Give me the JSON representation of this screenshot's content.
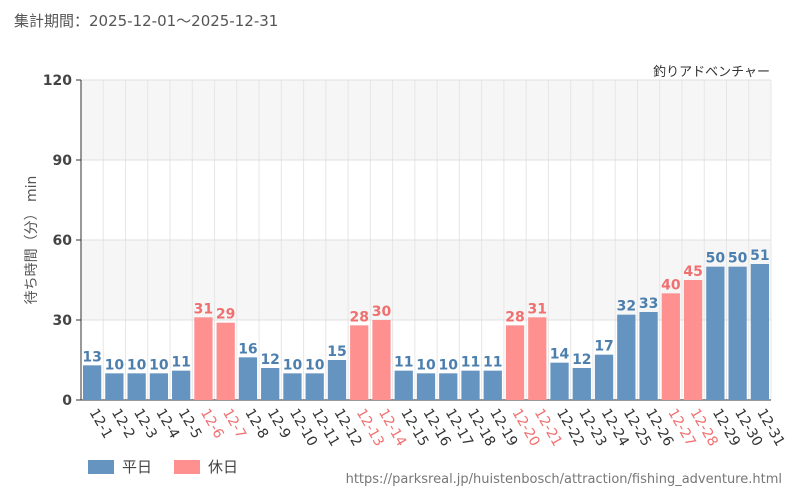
{
  "period": "集計期間：2025-12-01～2025-12-31",
  "colors": {
    "weekday": "#6594c1",
    "holiday": "#ff9090",
    "holiday_text": "#f07070",
    "weekday_text": "#4d7fae"
  },
  "legend": {
    "weekday": "平日",
    "holiday": "休日"
  },
  "source": "https://parksreal.jp/huistenbosch/attraction/fishing_adventure.html",
  "chart_data": {
    "type": "bar",
    "title": "釣りアドベンチャー",
    "xlabel": "",
    "ylabel": "待ち時間（分） min",
    "ylim": [
      0,
      120
    ],
    "yticks": [
      0,
      30,
      60,
      90,
      120
    ],
    "categories": [
      "12-1",
      "12-2",
      "12-3",
      "12-4",
      "12-5",
      "12-6",
      "12-7",
      "12-8",
      "12-9",
      "12-10",
      "12-11",
      "12-12",
      "12-13",
      "12-14",
      "12-15",
      "12-16",
      "12-17",
      "12-18",
      "12-19",
      "12-20",
      "12-21",
      "12-22",
      "12-23",
      "12-24",
      "12-25",
      "12-26",
      "12-27",
      "12-28",
      "12-29",
      "12-30",
      "12-31"
    ],
    "values": [
      13,
      10,
      10,
      10,
      11,
      31,
      29,
      16,
      12,
      10,
      10,
      15,
      28,
      30,
      11,
      10,
      10,
      11,
      11,
      28,
      31,
      14,
      12,
      17,
      32,
      33,
      40,
      45,
      50,
      50,
      51
    ],
    "day_type": [
      "平日",
      "平日",
      "平日",
      "平日",
      "平日",
      "休日",
      "休日",
      "平日",
      "平日",
      "平日",
      "平日",
      "平日",
      "休日",
      "休日",
      "平日",
      "平日",
      "平日",
      "平日",
      "平日",
      "休日",
      "休日",
      "平日",
      "平日",
      "平日",
      "平日",
      "平日",
      "休日",
      "休日",
      "平日",
      "平日",
      "平日"
    ]
  }
}
